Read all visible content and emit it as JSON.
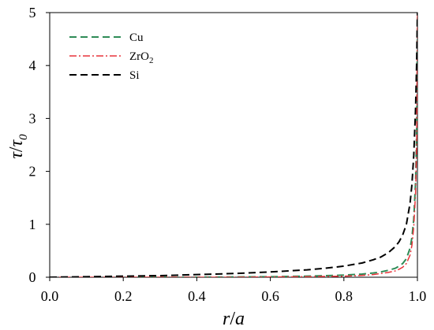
{
  "chart_data": {
    "type": "line",
    "xlabel_main": "r",
    "xlabel_sep": "/",
    "xlabel_den": "a",
    "ylabel_main": "τ",
    "ylabel_sep": "/",
    "ylabel_den": "τ",
    "ylabel_den_sub": "0",
    "xlim": [
      0,
      1
    ],
    "ylim": [
      0,
      5
    ],
    "x_ticks": [
      0.0,
      0.2,
      0.4,
      0.6,
      0.8,
      1.0
    ],
    "x_tick_labels": [
      "0.0",
      "0.2",
      "0.4",
      "0.6",
      "0.8",
      "1.0"
    ],
    "y_ticks": [
      0,
      1,
      2,
      3,
      4,
      5
    ],
    "y_tick_labels": [
      "0",
      "1",
      "2",
      "3",
      "4",
      "5"
    ],
    "grid": false,
    "legend_position": "top-left",
    "series": [
      {
        "name": "Cu",
        "name_main": "Cu",
        "name_sub": "",
        "color": "#2e8b57",
        "dash": "dashed",
        "x": [
          0.0,
          0.1,
          0.2,
          0.3,
          0.4,
          0.5,
          0.6,
          0.7,
          0.75,
          0.8,
          0.85,
          0.88,
          0.9,
          0.92,
          0.94,
          0.95,
          0.96,
          0.97,
          0.98,
          0.985,
          0.99,
          0.995,
          0.998,
          1.0
        ],
        "y": [
          0.0,
          0.0,
          0.0,
          0.0,
          0.0,
          0.005,
          0.01,
          0.02,
          0.03,
          0.04,
          0.06,
          0.08,
          0.1,
          0.13,
          0.17,
          0.21,
          0.26,
          0.35,
          0.55,
          0.75,
          1.1,
          1.8,
          2.8,
          5.0
        ]
      },
      {
        "name": "ZrO2",
        "name_main": "ZrO",
        "name_sub": "2",
        "color": "#e8343a",
        "dash": "dashdot",
        "x": [
          0.0,
          0.1,
          0.2,
          0.3,
          0.4,
          0.5,
          0.6,
          0.7,
          0.75,
          0.8,
          0.85,
          0.88,
          0.9,
          0.92,
          0.94,
          0.95,
          0.96,
          0.97,
          0.98,
          0.985,
          0.99,
          0.995,
          0.998,
          1.0
        ],
        "y": [
          0.0,
          0.0,
          0.0,
          0.0,
          0.0,
          0.0,
          0.005,
          0.01,
          0.015,
          0.02,
          0.035,
          0.05,
          0.07,
          0.09,
          0.12,
          0.15,
          0.19,
          0.26,
          0.42,
          0.6,
          0.95,
          1.6,
          2.6,
          5.0
        ]
      },
      {
        "name": "Si",
        "name_main": "Si",
        "name_sub": "",
        "color": "#000000",
        "dash": "dashed",
        "x": [
          0.0,
          0.1,
          0.2,
          0.3,
          0.4,
          0.5,
          0.6,
          0.7,
          0.75,
          0.8,
          0.85,
          0.88,
          0.9,
          0.92,
          0.94,
          0.95,
          0.96,
          0.97,
          0.98,
          0.985,
          0.99,
          0.995,
          0.998,
          1.0
        ],
        "y": [
          0.0,
          0.01,
          0.02,
          0.03,
          0.05,
          0.07,
          0.1,
          0.14,
          0.17,
          0.21,
          0.27,
          0.33,
          0.38,
          0.46,
          0.58,
          0.67,
          0.8,
          1.0,
          1.4,
          1.75,
          2.3,
          3.2,
          4.1,
          5.0
        ]
      }
    ]
  }
}
